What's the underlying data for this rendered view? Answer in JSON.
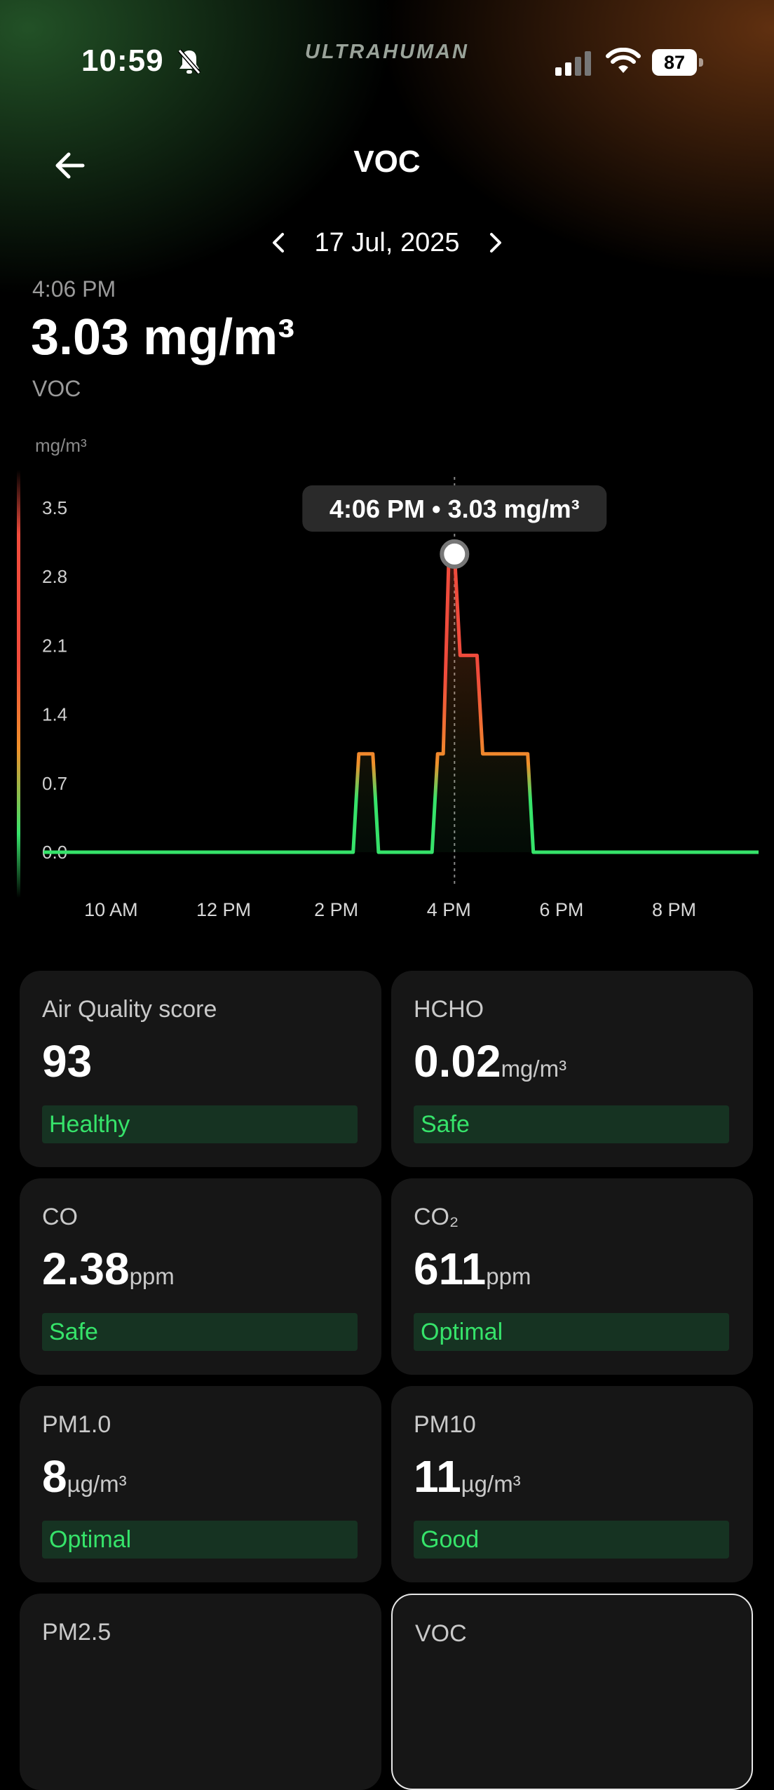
{
  "status": {
    "time": "10:59",
    "brand": "ULTRAHUMAN",
    "battery": "87",
    "icons": [
      "bell-slash-icon",
      "signal-icon",
      "wifi-icon",
      "battery-icon"
    ]
  },
  "header": {
    "title": "VOC",
    "back_icon": "arrow-left-icon"
  },
  "date_nav": {
    "date": "17 Jul, 2025",
    "prev_icon": "chevron-left-icon",
    "next_icon": "chevron-right-icon"
  },
  "reading": {
    "time": "4:06 PM",
    "value": "3.03 mg/m³",
    "label": "VOC"
  },
  "colors": {
    "safe": "#36e36a",
    "moderate": "#f0902a",
    "high": "#f04b3c",
    "badge_bg": "#163322",
    "card_bg": "#161616"
  },
  "chart_data": {
    "type": "line",
    "ylabel": "mg/m³",
    "ylim": [
      0,
      3.5
    ],
    "yticks": [
      "3.5",
      "2.8",
      "2.1",
      "1.4",
      "0.7",
      "0.0"
    ],
    "yticks_values": [
      3.5,
      2.8,
      2.1,
      1.4,
      0.7,
      0.0
    ],
    "xticks": [
      "10 AM",
      "12 PM",
      "2 PM",
      "4 PM",
      "6 PM",
      "8 PM"
    ],
    "xticks_hours": [
      10,
      12,
      14,
      16,
      18,
      20
    ],
    "xlim_hours": [
      8.8,
      21.5
    ],
    "tooltip": "4:06 PM • 3.03 mg/m³",
    "selected": {
      "x": 16.1,
      "y": 3.03
    },
    "series": [
      {
        "x": [
          8.8,
          14.3,
          14.4,
          14.65,
          14.75,
          15.7,
          15.8,
          15.9,
          16.0,
          16.1,
          16.2,
          16.3,
          16.5,
          16.6,
          17.4,
          17.5,
          21.5
        ],
        "y": [
          0,
          0,
          1.0,
          1.0,
          0,
          0,
          1.0,
          1.0,
          3.03,
          3.03,
          2.0,
          2.0,
          2.0,
          1.0,
          1.0,
          0,
          0
        ]
      }
    ]
  },
  "cards": [
    {
      "name": "Air Quality score",
      "value": "93",
      "unit": "",
      "status": "Healthy"
    },
    {
      "name": "HCHO",
      "value": "0.02",
      "unit": "mg/m³",
      "status": "Safe"
    },
    {
      "name": "CO",
      "value": "2.38",
      "unit": "ppm",
      "status": "Safe"
    },
    {
      "name": "CO₂",
      "value": "611",
      "unit": "ppm",
      "status": "Optimal"
    },
    {
      "name": "PM1.0",
      "value": "8",
      "unit": "µg/m³",
      "status": "Optimal"
    },
    {
      "name": "PM10",
      "value": "11",
      "unit": "µg/m³",
      "status": "Good"
    },
    {
      "name": "PM2.5",
      "value": "",
      "unit": "",
      "status": ""
    },
    {
      "name": "VOC",
      "value": "",
      "unit": "",
      "status": ""
    }
  ]
}
